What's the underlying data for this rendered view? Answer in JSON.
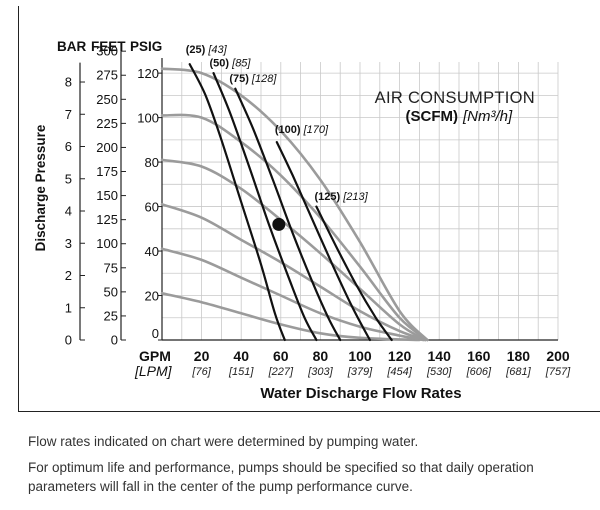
{
  "notes": {
    "line1": "Flow rates indicated on chart were determined by pumping water.",
    "line2": "For optimum life and performance, pumps should be specified so that daily operation parameters will fall in the center of the pump performance curve."
  },
  "chart_data": {
    "type": "line",
    "title": "",
    "ylabel": "Discharge Pressure",
    "xlabel": "Water Discharge Flow Rates",
    "legend_title": "AIR CONSUMPTION",
    "legend_units": "(SCFM)",
    "legend_units_alt": "[Nm³/h]",
    "grid": true,
    "xlim": [
      0,
      200
    ],
    "ylim": [
      0,
      125
    ],
    "x_axis": {
      "unit_label": "GPM",
      "alt_unit_label": "[LPM]",
      "ticks": [
        0,
        20,
        40,
        60,
        80,
        100,
        120,
        140,
        160,
        180,
        200
      ],
      "tick_labels": [
        "",
        "20",
        "40",
        "60",
        "80",
        "100",
        "120",
        "140",
        "160",
        "180",
        "200"
      ],
      "alt_tick_labels": [
        "",
        "[76]",
        "[151]",
        "[227]",
        "[303]",
        "[379]",
        "[454]",
        "[530]",
        "[606]",
        "[681]",
        "[757]"
      ]
    },
    "y_axes": {
      "headers": {
        "bar": "BAR",
        "feet": "FEET",
        "psig": "PSIG"
      },
      "psig_ticks": [
        0,
        20,
        40,
        60,
        80,
        100,
        120
      ],
      "psig_tick_labels": [
        "0",
        "20",
        "40",
        "60",
        "80",
        "100",
        "120"
      ],
      "feet_ticks": [
        0,
        25,
        50,
        75,
        100,
        125,
        150,
        175,
        200,
        225,
        250,
        275,
        300
      ],
      "feet_tick_labels": [
        "0",
        "25",
        "50",
        "75",
        "100",
        "125",
        "150",
        "175",
        "200",
        "225",
        "250",
        "275",
        "300"
      ],
      "bar_ticks": [
        0,
        1,
        2,
        3,
        4,
        5,
        6,
        7,
        8
      ],
      "bar_tick_labels": [
        "0",
        "1",
        "2",
        "3",
        "4",
        "5",
        "6",
        "7",
        "8"
      ],
      "feet_per_psig": 2.31,
      "psig_per_bar": 14.5
    },
    "series": [
      {
        "name": "20 psig",
        "kind": "pressure",
        "points": [
          [
            0,
            21
          ],
          [
            20,
            17
          ],
          [
            40,
            12
          ],
          [
            60,
            7
          ],
          [
            80,
            3
          ],
          [
            100,
            1
          ],
          [
            130,
            0
          ]
        ]
      },
      {
        "name": "40 psig",
        "kind": "pressure",
        "points": [
          [
            0,
            41
          ],
          [
            20,
            36
          ],
          [
            40,
            28
          ],
          [
            60,
            20
          ],
          [
            80,
            12
          ],
          [
            100,
            6
          ],
          [
            120,
            2
          ],
          [
            132,
            0
          ]
        ]
      },
      {
        "name": "60 psig",
        "kind": "pressure",
        "points": [
          [
            0,
            61
          ],
          [
            20,
            55
          ],
          [
            40,
            45
          ],
          [
            60,
            35
          ],
          [
            80,
            24
          ],
          [
            100,
            13
          ],
          [
            120,
            4
          ],
          [
            133,
            0
          ]
        ]
      },
      {
        "name": "80 psig",
        "kind": "pressure",
        "points": [
          [
            0,
            81
          ],
          [
            20,
            78
          ],
          [
            40,
            68
          ],
          [
            60,
            54
          ],
          [
            80,
            39
          ],
          [
            100,
            23
          ],
          [
            120,
            7
          ],
          [
            133,
            0
          ]
        ]
      },
      {
        "name": "100 psig",
        "kind": "pressure",
        "points": [
          [
            0,
            101
          ],
          [
            20,
            100
          ],
          [
            40,
            89
          ],
          [
            60,
            74
          ],
          [
            80,
            55
          ],
          [
            100,
            33
          ],
          [
            120,
            10
          ],
          [
            134,
            0
          ]
        ]
      },
      {
        "name": "120 psig",
        "kind": "pressure",
        "points": [
          [
            0,
            122
          ],
          [
            20,
            120
          ],
          [
            40,
            110
          ],
          [
            60,
            94
          ],
          [
            80,
            72
          ],
          [
            100,
            44
          ],
          [
            120,
            13
          ],
          [
            134,
            0
          ]
        ]
      },
      {
        "name": "(25)",
        "alt": "[43]",
        "kind": "air",
        "points": [
          [
            14,
            124
          ],
          [
            22,
            110
          ],
          [
            30,
            90
          ],
          [
            40,
            62
          ],
          [
            50,
            34
          ],
          [
            57,
            12
          ],
          [
            62,
            0
          ]
        ]
      },
      {
        "name": "(50)",
        "alt": "[85]",
        "kind": "air",
        "points": [
          [
            26,
            120
          ],
          [
            34,
            103
          ],
          [
            44,
            78
          ],
          [
            54,
            52
          ],
          [
            64,
            28
          ],
          [
            72,
            10
          ],
          [
            78,
            0
          ]
        ]
      },
      {
        "name": "(75)",
        "alt": "[128]",
        "kind": "air",
        "points": [
          [
            37,
            113
          ],
          [
            46,
            95
          ],
          [
            56,
            72
          ],
          [
            66,
            48
          ],
          [
            76,
            26
          ],
          [
            84,
            10
          ],
          [
            90,
            0
          ]
        ]
      },
      {
        "name": "(100)",
        "alt": "[170]",
        "kind": "air",
        "points": [
          [
            58,
            89
          ],
          [
            66,
            74
          ],
          [
            76,
            54
          ],
          [
            86,
            34
          ],
          [
            96,
            15
          ],
          [
            105,
            0
          ]
        ]
      },
      {
        "name": "(125)",
        "alt": "[213]",
        "kind": "air",
        "points": [
          [
            78,
            60
          ],
          [
            88,
            42
          ],
          [
            98,
            25
          ],
          [
            108,
            10
          ],
          [
            116,
            0
          ]
        ]
      }
    ],
    "operating_point": {
      "x": 59,
      "y": 52
    },
    "series_labels": [
      {
        "series": "(25)",
        "at": [
          12,
          129
        ]
      },
      {
        "series": "(50)",
        "at": [
          24,
          123
        ]
      },
      {
        "series": "(75)",
        "at": [
          34,
          116
        ]
      },
      {
        "series": "(100)",
        "at": [
          57,
          93
        ]
      },
      {
        "series": "(125)",
        "at": [
          77,
          63
        ]
      }
    ]
  }
}
